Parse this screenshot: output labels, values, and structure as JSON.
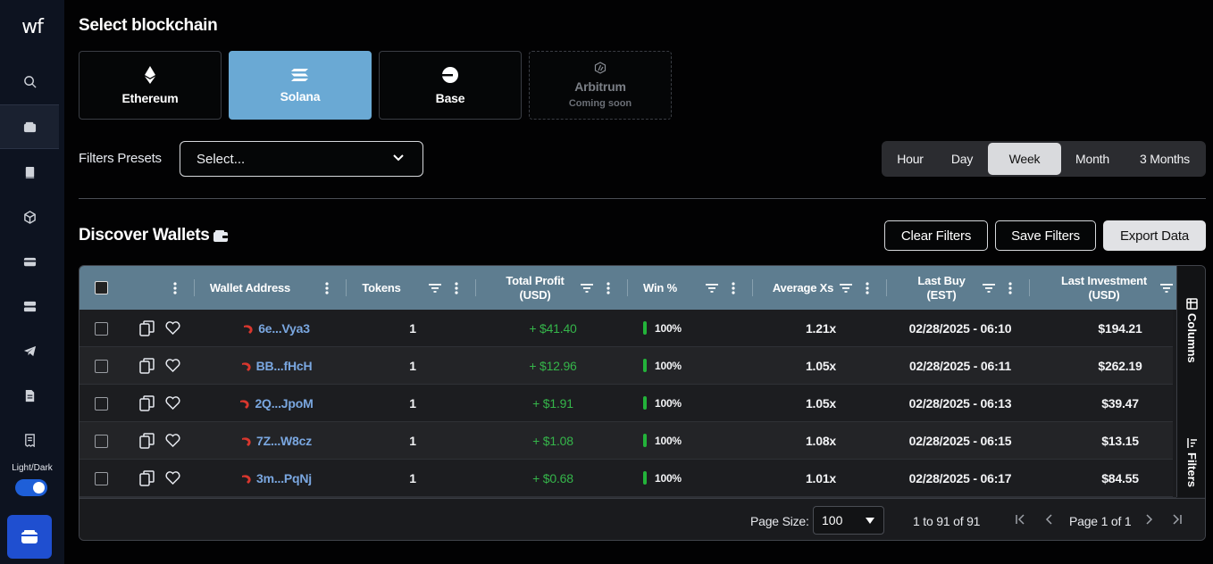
{
  "sidebar": {
    "logo": "wf",
    "items": [
      {
        "name": "search-icon"
      },
      {
        "name": "wallet-icon",
        "active": true
      },
      {
        "name": "book-icon"
      },
      {
        "name": "cube-icon"
      },
      {
        "name": "card-icon"
      },
      {
        "name": "server-icon"
      },
      {
        "name": "telegram-icon"
      },
      {
        "name": "document-icon"
      },
      {
        "name": "receipt-icon"
      }
    ],
    "theme_label": "Light/Dark"
  },
  "blockchain": {
    "title": "Select blockchain",
    "chains": [
      {
        "name": "Ethereum"
      },
      {
        "name": "Solana",
        "selected": true
      },
      {
        "name": "Base"
      },
      {
        "name": "Arbitrum",
        "sub": "Coming soon",
        "disabled": true
      }
    ]
  },
  "filters": {
    "label": "Filters Presets",
    "select_value": "Select..."
  },
  "timeframes": [
    "Hour",
    "Day",
    "Week",
    "Month",
    "3 Months"
  ],
  "active_timeframe": "Week",
  "discover": {
    "title": "Discover Wallets",
    "clear_label": "Clear Filters",
    "save_label": "Save Filters",
    "export_label": "Export Data"
  },
  "table": {
    "headers": {
      "wallet": "Wallet Address",
      "tokens": "Tokens",
      "profit_1": "Total Profit",
      "profit_2": "(USD)",
      "win": "Win %",
      "avg": "Average Xs",
      "lastbuy_1": "Last Buy",
      "lastbuy_2": "(EST)",
      "lastinv_1": "Last Investment",
      "lastinv_2": "(USD)"
    },
    "side_tabs": {
      "columns": "Columns",
      "filters": "Filters"
    },
    "rows": [
      {
        "address": "6e...Vya3",
        "tokens": "1",
        "profit": "+ $41.40",
        "win": "100%",
        "avg": "1.21x",
        "last_buy": "02/28/2025 - 06:10",
        "last_inv": "$194.21"
      },
      {
        "address": "BB...fHcH",
        "tokens": "1",
        "profit": "+ $12.96",
        "win": "100%",
        "avg": "1.05x",
        "last_buy": "02/28/2025 - 06:11",
        "last_inv": "$262.19"
      },
      {
        "address": "2Q...JpoM",
        "tokens": "1",
        "profit": "+ $1.91",
        "win": "100%",
        "avg": "1.05x",
        "last_buy": "02/28/2025 - 06:13",
        "last_inv": "$39.47"
      },
      {
        "address": "7Z...W8cz",
        "tokens": "1",
        "profit": "+ $1.08",
        "win": "100%",
        "avg": "1.08x",
        "last_buy": "02/28/2025 - 06:15",
        "last_inv": "$13.15"
      },
      {
        "address": "3m...PqNj",
        "tokens": "1",
        "profit": "+ $0.68",
        "win": "100%",
        "avg": "1.01x",
        "last_buy": "02/28/2025 - 06:17",
        "last_inv": "$84.55"
      }
    ]
  },
  "pagination": {
    "page_size_label": "Page Size:",
    "page_size": "100",
    "range": "1 to 91 of 91",
    "page": "Page 1 of 1"
  },
  "colors": {
    "header_row": "#5e7d90",
    "selected_chain": "#6aa9d4",
    "profit": "#35b54a",
    "accent_blue": "#1f4fd0"
  }
}
